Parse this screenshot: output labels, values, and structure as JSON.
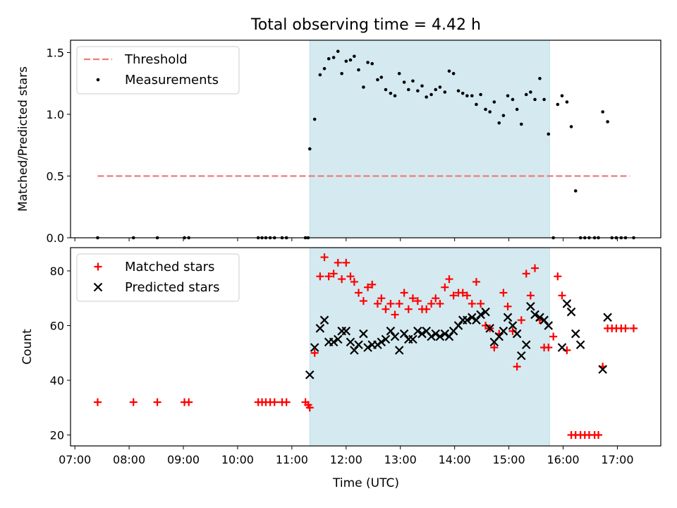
{
  "chart_data": {
    "type": "scatter",
    "title": "Total observing time = 4.42 h",
    "xlabel": "Time (UTC)",
    "x_ticks": [
      "07:00",
      "08:00",
      "09:00",
      "10:00",
      "11:00",
      "12:00",
      "13:00",
      "14:00",
      "15:00",
      "16:00",
      "17:00"
    ],
    "xlim_hours": [
      6.92,
      17.8
    ],
    "highlight_span_hours": [
      11.33,
      15.75
    ],
    "highlight_color": "#d4eaf0",
    "panels": [
      {
        "ylabel": "Matched/Predicted stars",
        "ylim": [
          0,
          1.6
        ],
        "y_ticks": [
          0.0,
          0.5,
          1.0,
          1.5
        ],
        "y_tick_labels": [
          "0.0",
          "0.5",
          "1.0",
          "1.5"
        ],
        "legend_position": "upper-left",
        "series": [
          {
            "name": "Threshold",
            "kind": "dashed-line",
            "color": "#f07a7a",
            "x": [
              7.42,
              17.23
            ],
            "y": [
              0.5,
              0.5
            ]
          },
          {
            "name": "Measurements",
            "kind": "dot",
            "color": "#000000",
            "x": [
              7.42,
              8.08,
              8.52,
              9.02,
              9.1,
              10.38,
              10.45,
              10.52,
              10.6,
              10.68,
              10.82,
              10.9,
              11.25,
              11.3,
              11.33,
              11.42,
              11.52,
              11.6,
              11.68,
              11.77,
              11.85,
              11.92,
              12.0,
              12.08,
              12.15,
              12.23,
              12.32,
              12.4,
              12.48,
              12.58,
              12.65,
              12.73,
              12.82,
              12.9,
              12.98,
              13.07,
              13.15,
              13.23,
              13.32,
              13.4,
              13.48,
              13.57,
              13.65,
              13.73,
              13.82,
              13.9,
              13.98,
              14.07,
              14.15,
              14.23,
              14.32,
              14.4,
              14.48,
              14.57,
              14.65,
              14.73,
              14.82,
              14.9,
              14.98,
              15.07,
              15.15,
              15.23,
              15.32,
              15.4,
              15.48,
              15.57,
              15.65,
              15.73,
              15.82,
              15.9,
              15.98,
              16.07,
              16.15,
              16.23,
              16.32,
              16.4,
              16.48,
              16.58,
              16.65,
              16.73,
              16.82,
              16.9,
              16.98,
              17.07,
              17.15,
              17.3
            ],
            "y": [
              0.0,
              0.0,
              0.0,
              0.0,
              0.0,
              0.0,
              0.0,
              0.0,
              0.0,
              0.0,
              0.0,
              0.0,
              0.0,
              0.0,
              0.72,
              0.96,
              1.32,
              1.37,
              1.45,
              1.46,
              1.51,
              1.33,
              1.43,
              1.44,
              1.47,
              1.36,
              1.22,
              1.42,
              1.41,
              1.28,
              1.3,
              1.2,
              1.17,
              1.15,
              1.33,
              1.26,
              1.2,
              1.27,
              1.19,
              1.23,
              1.14,
              1.16,
              1.2,
              1.22,
              1.18,
              1.35,
              1.33,
              1.19,
              1.17,
              1.15,
              1.15,
              1.08,
              1.16,
              1.04,
              1.02,
              1.1,
              0.93,
              0.99,
              1.15,
              1.12,
              1.04,
              0.92,
              1.16,
              1.18,
              1.12,
              1.29,
              1.12,
              0.84,
              0.0,
              1.08,
              1.15,
              1.1,
              0.9,
              0.38,
              0.0,
              0.0,
              0.0,
              0.0,
              0.0,
              1.02,
              0.94,
              0.0,
              0.0,
              0.0,
              0.0,
              0.0
            ]
          }
        ]
      },
      {
        "ylabel": "Count",
        "ylim": [
          16,
          88.5
        ],
        "y_ticks": [
          20,
          40,
          60,
          80
        ],
        "y_tick_labels": [
          "20",
          "40",
          "60",
          "80"
        ],
        "legend_position": "upper-left",
        "series": [
          {
            "name": "Matched stars",
            "kind": "plus",
            "color": "#ff0000",
            "x": [
              7.42,
              8.08,
              8.52,
              9.02,
              9.1,
              10.38,
              10.45,
              10.52,
              10.6,
              10.68,
              10.82,
              10.9,
              11.25,
              11.3,
              11.33,
              11.42,
              11.52,
              11.6,
              11.68,
              11.77,
              11.85,
              11.92,
              12.0,
              12.08,
              12.15,
              12.23,
              12.32,
              12.4,
              12.48,
              12.58,
              12.65,
              12.73,
              12.82,
              12.9,
              12.98,
              13.07,
              13.15,
              13.23,
              13.32,
              13.4,
              13.48,
              13.57,
              13.65,
              13.73,
              13.82,
              13.9,
              13.98,
              14.07,
              14.15,
              14.23,
              14.32,
              14.4,
              14.48,
              14.57,
              14.65,
              14.73,
              14.82,
              14.9,
              14.98,
              15.07,
              15.15,
              15.23,
              15.32,
              15.4,
              15.48,
              15.57,
              15.65,
              15.73,
              15.82,
              15.9,
              15.98,
              16.07,
              16.15,
              16.23,
              16.32,
              16.4,
              16.48,
              16.58,
              16.65,
              16.73,
              16.82,
              16.9,
              16.98,
              17.07,
              17.15,
              17.3
            ],
            "y": [
              32,
              32,
              32,
              32,
              32,
              32,
              32,
              32,
              32,
              32,
              32,
              32,
              32,
              31,
              30,
              50,
              78,
              85,
              78,
              79,
              83,
              77,
              83,
              78,
              76,
              72,
              69,
              74,
              75,
              68,
              70,
              66,
              68,
              64,
              68,
              72,
              66,
              70,
              69,
              66,
              66,
              68,
              70,
              68,
              74,
              77,
              71,
              72,
              72,
              71,
              68,
              76,
              68,
              60,
              59,
              52,
              57,
              72,
              67,
              58,
              45,
              62,
              79,
              71,
              81,
              62,
              52,
              52,
              56,
              78,
              71,
              51,
              20,
              20,
              20,
              20,
              20,
              20,
              20,
              45,
              59,
              59,
              59,
              59,
              59,
              59
            ]
          },
          {
            "name": "Predicted stars",
            "kind": "x",
            "color": "#000000",
            "x": [
              11.33,
              11.42,
              11.52,
              11.6,
              11.68,
              11.77,
              11.85,
              11.92,
              12.0,
              12.08,
              12.15,
              12.23,
              12.32,
              12.4,
              12.48,
              12.58,
              12.65,
              12.73,
              12.82,
              12.9,
              12.98,
              13.07,
              13.15,
              13.23,
              13.32,
              13.4,
              13.48,
              13.57,
              13.65,
              13.73,
              13.82,
              13.9,
              13.98,
              14.07,
              14.15,
              14.23,
              14.32,
              14.4,
              14.48,
              14.57,
              14.65,
              14.73,
              14.82,
              14.9,
              14.98,
              15.07,
              15.15,
              15.23,
              15.32,
              15.4,
              15.48,
              15.57,
              15.65,
              15.73,
              15.98,
              16.07,
              16.15,
              16.23,
              16.32,
              16.73,
              16.82
            ],
            "y": [
              42,
              52,
              59,
              62,
              54,
              54,
              55,
              58,
              58,
              54,
              51,
              53,
              57,
              52,
              53,
              53,
              54,
              55,
              58,
              56,
              51,
              57,
              55,
              55,
              58,
              57,
              58,
              56,
              57,
              56,
              57,
              56,
              58,
              60,
              62,
              62,
              63,
              62,
              64,
              65,
              59,
              54,
              56,
              58,
              63,
              60,
              57,
              49,
              53,
              67,
              64,
              63,
              62,
              60,
              52,
              68,
              65,
              57,
              53,
              44,
              63
            ]
          }
        ]
      }
    ]
  }
}
